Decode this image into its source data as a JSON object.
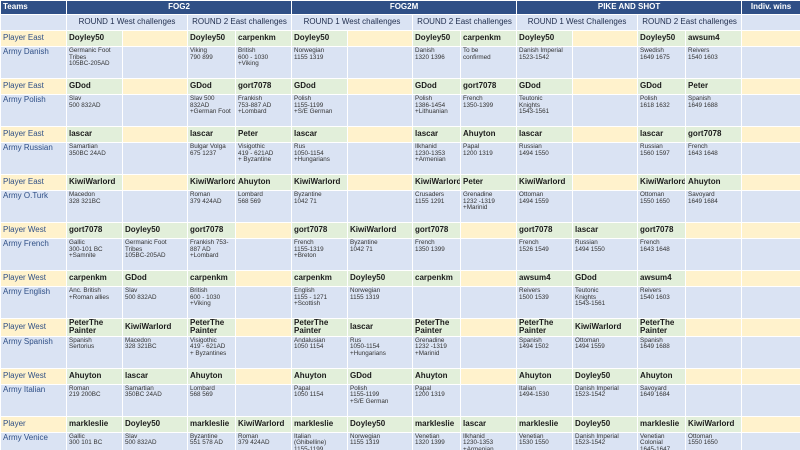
{
  "header": {
    "teams": "Teams",
    "games": [
      "FOG2",
      "FOG2M",
      "PIKE AND SHOT"
    ],
    "indiv": "Indiv. wins",
    "rounds": [
      "ROUND  1 West challenges",
      "ROUND  2 East challenges",
      "ROUND  1 West challenges",
      "ROUND  2 East challenges",
      "ROUND  1 West Challenges",
      "ROUND  2 East challenges"
    ]
  },
  "groups": [
    {
      "player_label": "Player East",
      "players": [
        "Doyley50",
        null,
        "Doyley50",
        "carpenkm",
        "Doyley50",
        null,
        "Doyley50",
        "carpenkm",
        "Doyley50",
        null,
        "Doyley50",
        "awsum4"
      ],
      "army_label": "Army Danish",
      "armies": [
        "Germanic Foot\nTribes\n105BC-205AD",
        null,
        "Viking\n790 899",
        "British\n600 - 1030\n+Viking",
        "Norwegian\n1155 1319",
        null,
        "Danish\n1320  1396",
        "To be\nconfirmed",
        "Danish Imperial\n1523-1542",
        null,
        "Swedish\n1649 1675",
        "Reivers\n1540 1603"
      ]
    },
    {
      "player_label": "Player East",
      "players": [
        "GDod",
        null,
        "GDod",
        "gort7078",
        "GDod",
        null,
        "GDod",
        "gort7078",
        "GDod",
        null,
        "GDod",
        "Peter"
      ],
      "army_label": "Army Polish",
      "armies": [
        "Slav\n500 832AD",
        null,
        "Slav 500 832AD\n+German Foot",
        "Frankish\n753-887 AD\n+Lombard",
        "Polish\n1155-1199\n+S/E German",
        null,
        "Polish\n1386-1454\n+Lithuanian",
        "French\n1350-1399",
        "Teutonic\nKnights\n1543-1561",
        null,
        "Polish\n1618 1632",
        "Spanish\n1649 1688"
      ]
    },
    {
      "player_label": "Player East",
      "players": [
        "lascar",
        null,
        "lascar",
        "Peter",
        "lascar",
        null,
        "lascar",
        "Ahuyton",
        "lascar",
        null,
        "lascar",
        "gort7078"
      ],
      "army_label": "Army Russian",
      "armies": [
        "Samartian\n350BC  24AD",
        null,
        "Bulgar Volga\n675 1237",
        "Visigothic\n419 - 621AD\n+ Byzantine",
        "Rus\n1050-1154\n+Hungarians",
        null,
        "Ilkhanid\n1230-1353\n+Armenian",
        "Papal\n1200 1319",
        "Russian\n1494 1550",
        null,
        "Russian\n1560 1597",
        "French\n1643 1648"
      ]
    },
    {
      "player_label": "Player East",
      "players": [
        "KiwiWarlord",
        null,
        "KiwiWarlord",
        "Ahuyton",
        "KiwiWarlord",
        null,
        "KiwiWarlord",
        "Peter",
        "KiwiWarlord",
        null,
        "KiwiWarlord",
        "Ahuyton"
      ],
      "army_label": "Army O.Turk",
      "armies": [
        "Macedon\n328 321BC",
        null,
        "Roman\n379 424AD",
        "Lombard\n568 569",
        "Byzantine\n1042 71",
        null,
        "Crusaders\n1155 1291",
        "Grenadine\n1232 -1319\n+Marinid",
        "Ottoman\n1494 1559",
        null,
        "Ottoman\n1550 1650",
        "Savoyard\n1649 1684"
      ]
    },
    {
      "player_label": "Player West",
      "players": [
        "gort7078",
        "Doyley50",
        "gort7078",
        null,
        "gort7078",
        "KiwiWarlord",
        "gort7078",
        null,
        "gort7078",
        "lascar",
        "gort7078",
        null
      ],
      "army_label": "Army French",
      "armies": [
        "Gallic\n300-101 BC\n+Samnite",
        "Germanic Foot\nTribes\n105BC-205AD",
        "Frankish 753-\n887 AD\n+Lombard",
        null,
        "French\n1155-1319\n+Breton",
        "Byzantine\n1042 71",
        "French\n1350 1399",
        null,
        "French\n1526 1549",
        "Russian\n1494 1550",
        "French\n1643 1648",
        null
      ]
    },
    {
      "player_label": "Player West",
      "players": [
        "carpenkm",
        "GDod",
        "carpenkm",
        null,
        "carpenkm",
        "Doyley50",
        "carpenkm",
        null,
        "awsum4",
        "GDod",
        "awsum4",
        null
      ],
      "army_label": "Army English",
      "armies": [
        "Anc. British\n+Roman allies",
        "Slav\n500 832AD",
        "British\n600 - 1030\n+Viking",
        null,
        "English\n1155 - 1271\n+Scottish",
        "Norwegian\n1155 1319",
        null,
        null,
        "Reivers\n1500 1539",
        "Teutonic\nKnights\n1543-1561",
        "Reivers\n1540 1603",
        null
      ]
    },
    {
      "player_label": "Player West",
      "players": [
        "PeterThe\nPainter",
        "KiwiWarlord",
        "PeterThe\nPainter",
        null,
        "PeterThe\nPainter",
        "lascar",
        "PeterThe\nPainter",
        null,
        "PeterThe\nPainter",
        "KiwiWarlord",
        "PeterThe\nPainter",
        null
      ],
      "army_label": "Army Spanish",
      "armies": [
        "Spanish\nSertorius",
        "Macedon\n328 321BC",
        "Visigothic\n419 - 621AD\n+ Byzantines",
        null,
        "Andalusian\n1050  1154",
        "Rus\n1050-1154\n+Hungarians",
        "Grenadine\n1232 -1319\n+Marinid",
        null,
        "Spanish\n1494  1502",
        "Ottoman\n1494 1559",
        "Spanish\n1649 1688",
        null
      ]
    },
    {
      "player_label": "Player West",
      "players": [
        "Ahuyton",
        "lascar",
        "Ahuyton",
        null,
        "Ahuyton",
        "GDod",
        "Ahuyton",
        null,
        "Ahuyton",
        "Doyley50",
        "Ahuyton",
        null
      ],
      "army_label": "Army Italian",
      "armies": [
        "Roman\n219 200BC",
        "Samartian\n350BC  24AD",
        "Lombard\n568 569",
        null,
        "Papal\n1050 1154",
        "Polish\n1155-1199\n+S/E German",
        "Papal\n1200 1319",
        null,
        "Italian\n1494-1530",
        "Danish Imperial\n1523-1542",
        "Savoyard\n1649 1684",
        null
      ]
    },
    {
      "player_label": "Player",
      "players": [
        "markleslie",
        "Doyley50",
        "markleslie",
        "KiwiWarlord",
        "markleslie",
        "Doyley50",
        "markleslie",
        "lascar",
        "markleslie",
        "Doyley50",
        "markleslie",
        "KiwiWarlord"
      ],
      "army_label": "Army Venice",
      "armies": [
        "Gallic\n300 101 BC",
        "Slav\n500 832AD",
        "Byzantine\n551 578 AD",
        "Roman\n379 424AD",
        "Italian\n(Ghibelline)\n1155-1199",
        "Norwegian\n1155 1319",
        "Venetian\n1320 1399",
        "Ilkhanid\n1230-1353\n+Armenian",
        "Venetian\n1530 1550",
        "Danish Imperial\n1523-1542",
        "Venetian\nColonial\n1645-1647",
        "Ottoman\n1550 1650"
      ]
    }
  ]
}
